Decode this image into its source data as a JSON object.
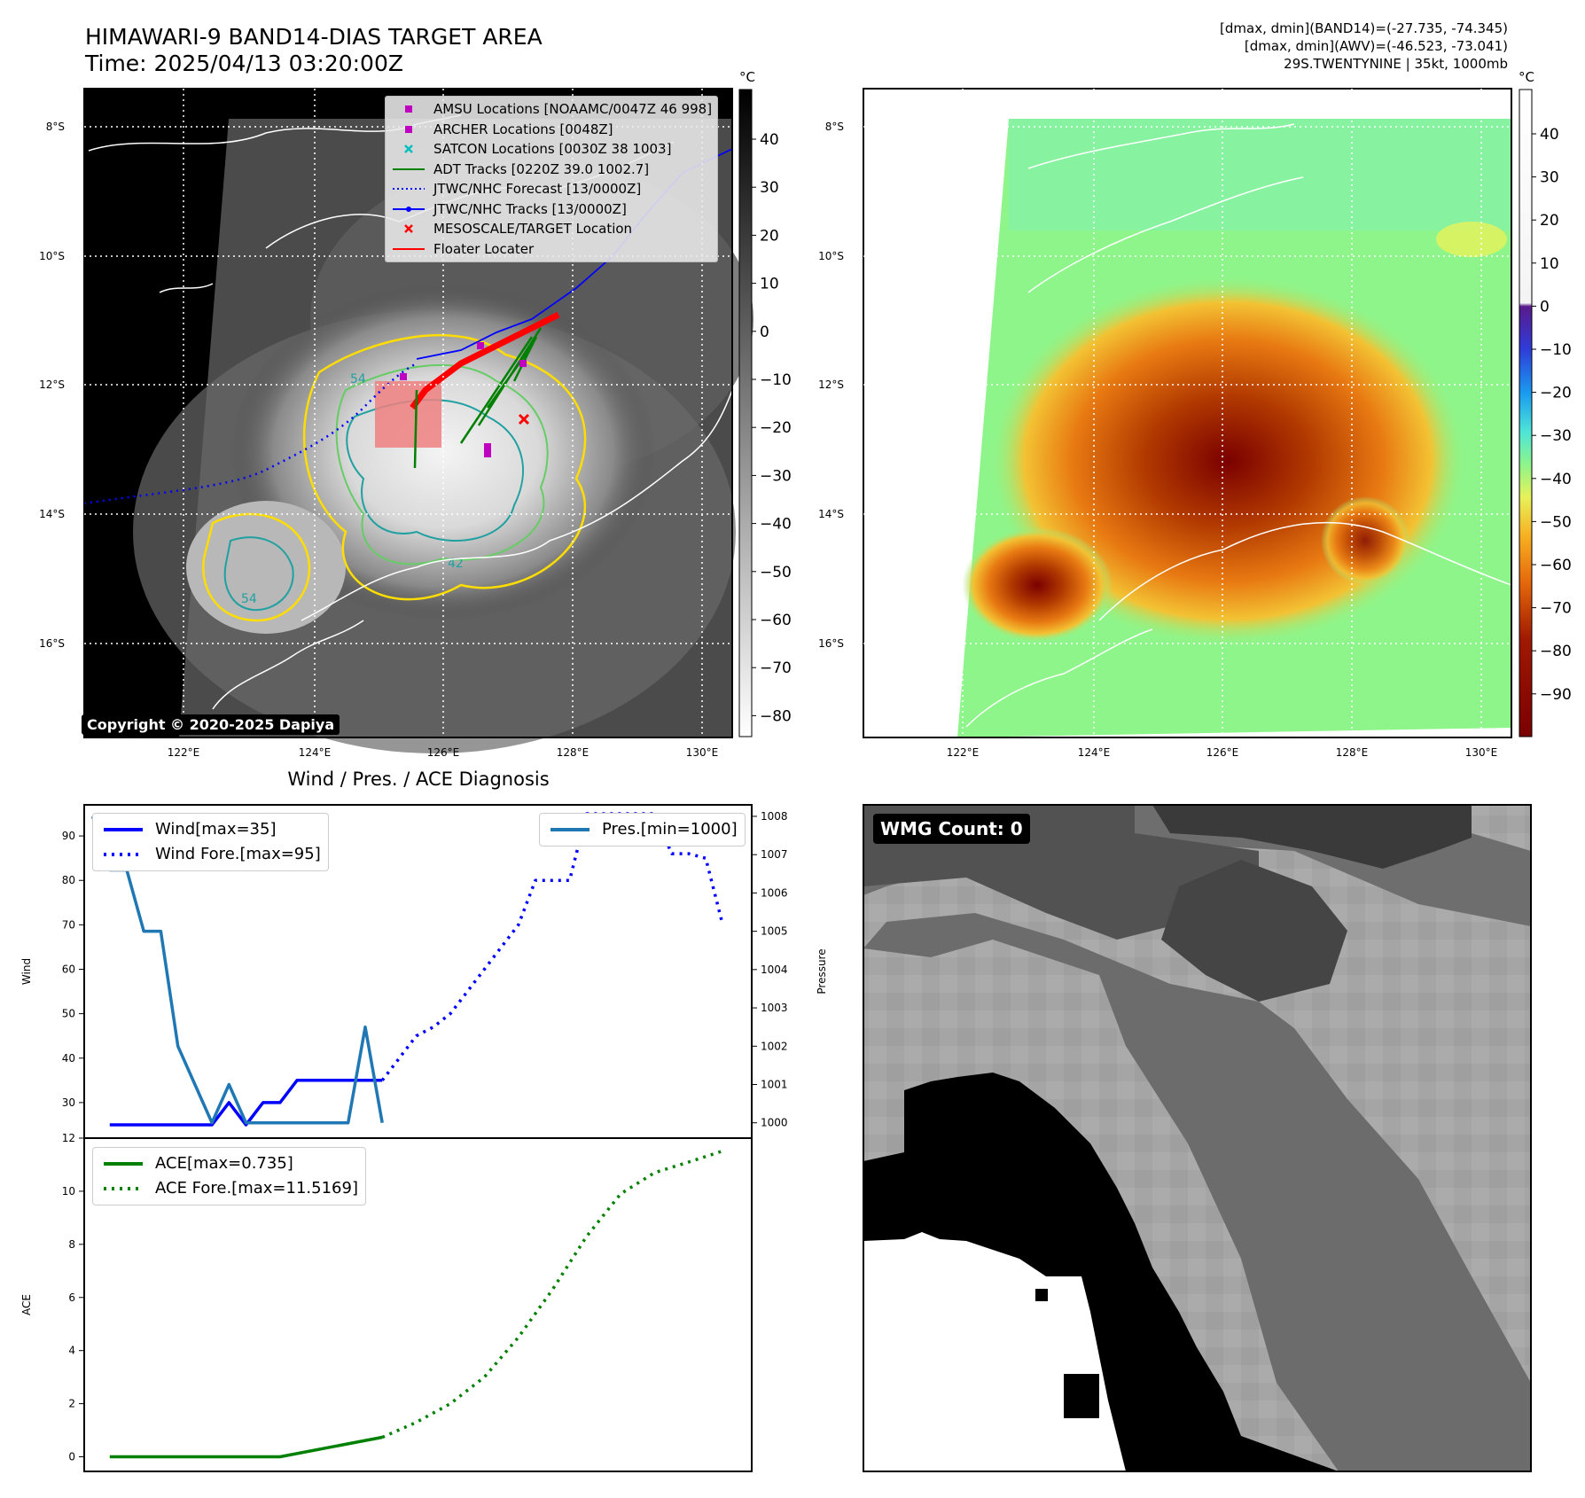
{
  "header": {
    "title_line1": "HIMAWARI-9 BAND14-DIAS TARGET AREA",
    "title_line2": "Time: 2025/04/13 03:20:00Z",
    "right_line1": "[dmax, dmin](BAND14)=(-27.735, -74.345)",
    "right_line2": "[dmax, dmin](AWV)=(-46.523, -73.041)",
    "right_line3": "29S.TWENTYNINE | 35kt, 1000mb"
  },
  "map": {
    "lat_labels": [
      "8°S",
      "10°S",
      "12°S",
      "14°S",
      "16°S"
    ],
    "lon_labels": [
      "122°E",
      "124°E",
      "126°E",
      "128°E",
      "130°E"
    ],
    "copyright": "Copyright © 2020-2025 Dapiya",
    "contour_labels": [
      "54",
      "42",
      "54"
    ],
    "legend": [
      {
        "label": "AMSU Locations [NOAAMC/0047Z 46 998]",
        "marker": "square",
        "color": "#c000c0"
      },
      {
        "label": "ARCHER Locations [0048Z]",
        "marker": "square",
        "color": "#c000c0"
      },
      {
        "label": "SATCON Locations [0030Z 38 1003]",
        "marker": "x",
        "color": "#00c0c0"
      },
      {
        "label": "ADT Tracks [0220Z 39.0 1002.7]",
        "marker": "line",
        "color": "#008000"
      },
      {
        "label": "JTWC/NHC Forecast [13/0000Z]",
        "marker": "dotted",
        "color": "#0000ff"
      },
      {
        "label": "JTWC/NHC Tracks [13/0000Z]",
        "marker": "line-dot",
        "color": "#0000ff"
      },
      {
        "label": "MESOSCALE/TARGET Location",
        "marker": "x",
        "color": "#ff0000"
      },
      {
        "label": "Floater Locater",
        "marker": "line",
        "color": "#ff0000"
      }
    ]
  },
  "colorbar_gray": {
    "unit": "°C",
    "ticks": [
      "40",
      "30",
      "20",
      "10",
      "0",
      "−10",
      "−20",
      "−30",
      "−40",
      "−50",
      "−60",
      "−70",
      "−80"
    ]
  },
  "colorbar_color": {
    "unit": "°C",
    "ticks": [
      "40",
      "30",
      "20",
      "10",
      "0",
      "−10",
      "−20",
      "−30",
      "−40",
      "−50",
      "−60",
      "−70",
      "−80",
      "−90"
    ]
  },
  "colors": {
    "wind": "#0000ff",
    "pressure": "#1f77b4",
    "ace": "#008000",
    "floater": "#ff0000"
  },
  "chart_data": [
    {
      "type": "line",
      "title": "Wind / Pres. / ACE Diagnosis",
      "ylabel": "Wind",
      "ylabel_right": "Pressure",
      "ylim": [
        22,
        97
      ],
      "ylim_right": [
        999.6,
        1008.3
      ],
      "xlim": [
        -1.5,
        37.7
      ],
      "yticks": [
        30,
        40,
        50,
        60,
        70,
        80,
        90
      ],
      "yticks_right": [
        1000,
        1001,
        1002,
        1003,
        1004,
        1005,
        1006,
        1007,
        1008
      ],
      "legend_left": [
        "Wind[max=35]",
        "Wind Fore.[max=95]"
      ],
      "legend_right": [
        "Pres.[min=1000]"
      ],
      "series": [
        {
          "name": "Wind[max=35]",
          "axis": "left",
          "style": "solid",
          "x": [
            0,
            1,
            2,
            3,
            4,
            5,
            6,
            7,
            8,
            9,
            10,
            11,
            12,
            13,
            14,
            15,
            16
          ],
          "values": [
            25,
            25,
            25,
            25,
            25,
            25,
            25,
            30,
            25,
            30,
            30,
            35,
            35,
            35,
            35,
            35,
            35
          ]
        },
        {
          "name": "Wind Fore.[max=95]",
          "axis": "left",
          "style": "dotted",
          "x": [
            16,
            17,
            18,
            19,
            20,
            21,
            22,
            23,
            24,
            25,
            26,
            27,
            28,
            29,
            30,
            31,
            32,
            33,
            34,
            35,
            36
          ],
          "values": [
            35,
            40,
            45,
            47,
            50,
            55,
            60,
            65,
            70,
            80,
            80,
            80,
            95,
            95,
            95,
            95,
            95,
            86,
            86,
            85,
            70
          ]
        },
        {
          "name": "Pres.[min=1000]",
          "axis": "right",
          "style": "solid",
          "x": [
            -1,
            0,
            1,
            2,
            3,
            4,
            5,
            6,
            7,
            8,
            9,
            10,
            11,
            12,
            13,
            14,
            15,
            16
          ],
          "values": [
            1008.0,
            1006.6,
            1006.6,
            1005.0,
            1005.0,
            1002.0,
            1001.0,
            1000.0,
            1001.0,
            1000.0,
            1000.0,
            1000.0,
            1000.0,
            1000.0,
            1000.0,
            1000.0,
            1002.5,
            1000.0
          ]
        }
      ]
    },
    {
      "type": "line",
      "ylabel": "ACE",
      "ylim": [
        -0.55,
        12
      ],
      "xlim": [
        -1.5,
        37.7
      ],
      "yticks": [
        0,
        2,
        4,
        6,
        8,
        10,
        12
      ],
      "legend": [
        "ACE[max=0.735]",
        "ACE Fore.[max=11.5169]"
      ],
      "series": [
        {
          "name": "ACE[max=0.735]",
          "style": "solid",
          "x": [
            0,
            10,
            16
          ],
          "values": [
            0.0,
            0.0,
            0.735
          ]
        },
        {
          "name": "ACE Fore.[max=11.5169]",
          "style": "dotted",
          "x": [
            16,
            18,
            20,
            22,
            24,
            26,
            28,
            30,
            32,
            34,
            36
          ],
          "values": [
            0.735,
            1.3,
            2.0,
            3.0,
            4.5,
            6.3,
            8.3,
            9.9,
            10.7,
            11.1,
            11.5169
          ]
        }
      ]
    }
  ],
  "wmg": {
    "label": "WMG Count: 0"
  }
}
